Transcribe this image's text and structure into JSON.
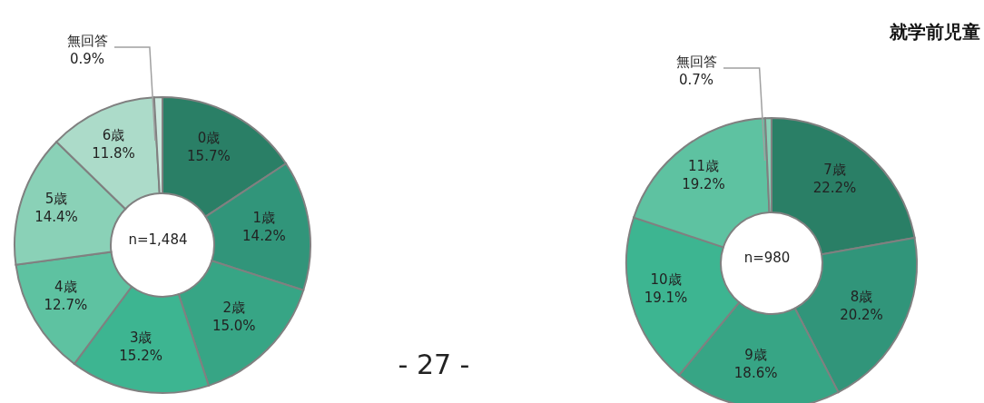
{
  "chart_data": [
    {
      "type": "donut",
      "categories": [
        "0歳",
        "1歳",
        "2歳",
        "3歳",
        "4歳",
        "5歳",
        "6歳",
        "無回答"
      ],
      "values": [
        15.7,
        14.2,
        15.0,
        15.2,
        12.7,
        14.4,
        11.8,
        0.9
      ],
      "value_labels": [
        "15.7%",
        "14.2%",
        "15.0%",
        "15.2%",
        "12.7%",
        "14.4%",
        "11.8%",
        "0.9%"
      ],
      "colors": [
        "#2a7f66",
        "#31957a",
        "#37a585",
        "#3db591",
        "#5ec2a1",
        "#8ad1b7",
        "#acdbc9",
        "#cde9df"
      ],
      "annotations": [
        "n=1,484",
        "- 27 -"
      ],
      "legend": false
    },
    {
      "type": "donut",
      "title": "就学前児童",
      "categories": [
        "7歳",
        "8歳",
        "9歳",
        "10歳",
        "11歳",
        "無回答"
      ],
      "values": [
        22.2,
        20.2,
        18.6,
        19.1,
        19.2,
        0.7
      ],
      "value_labels": [
        "22.2%",
        "20.2%",
        "18.6%",
        "19.1%",
        "19.2%",
        "0.7%"
      ],
      "colors": [
        "#2a7f66",
        "#31957a",
        "#37a585",
        "#3db591",
        "#5ec2a1",
        "#8ad1b7"
      ],
      "annotations": [
        "n=980"
      ],
      "legend": false
    }
  ]
}
